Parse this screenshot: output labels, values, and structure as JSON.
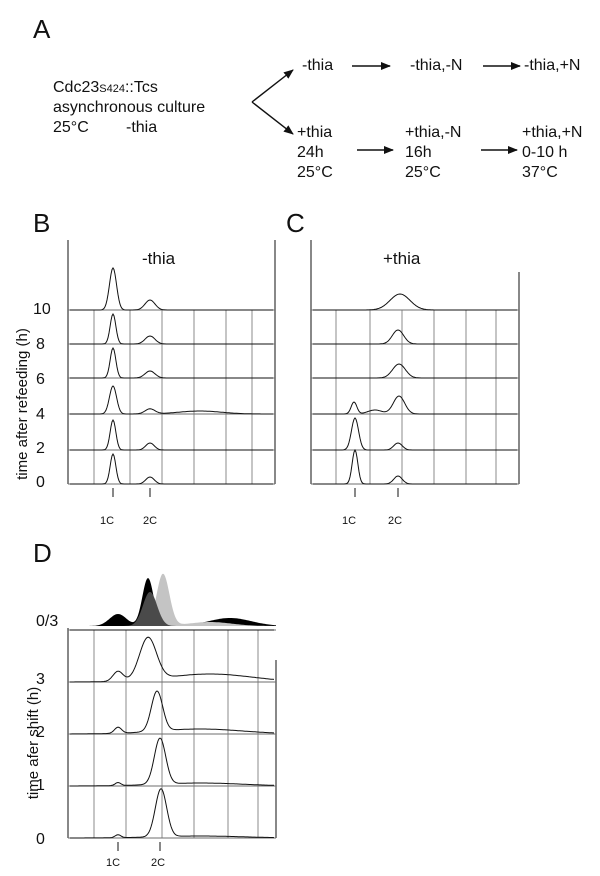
{
  "panel_a": {
    "label": "A",
    "strain_prefix": "Cdc23",
    "strain_sub": "S424",
    "strain_suffix": "::Tcs",
    "culture": "asynchronous culture",
    "temp": "25°C",
    "cond": "-thia",
    "top_row": [
      "-thia",
      "-thia,-N",
      "-thia,+N"
    ],
    "bottom_row": [
      [
        "+thia",
        "24h",
        "25°C"
      ],
      [
        "+thia,-N",
        "16h",
        "25°C"
      ],
      [
        "+thia,+N",
        "0-10 h",
        "37°C"
      ]
    ]
  },
  "panel_b": {
    "label": "B",
    "title": "-thia",
    "ylabel": "time after refeeding (h)",
    "row_labels": [
      "10",
      "8",
      "6",
      "4",
      "2",
      "0"
    ],
    "x_ticks": [
      "1C",
      "2C"
    ]
  },
  "panel_c": {
    "label": "C",
    "title": "+thia",
    "x_ticks": [
      "1C",
      "2C"
    ]
  },
  "panel_d": {
    "label": "D",
    "overlay_label": "0/3",
    "ylabel": "time afer shift   (h)",
    "row_labels": [
      "3",
      "2",
      "1",
      "0"
    ],
    "x_ticks": [
      "1C",
      "2C"
    ]
  },
  "colors": {
    "ink": "#111111",
    "grid": "#6e6e6e",
    "overlay_dark": "#4a4a4a",
    "overlay_light": "#c4c4c4",
    "overlay_black": "#000000"
  }
}
